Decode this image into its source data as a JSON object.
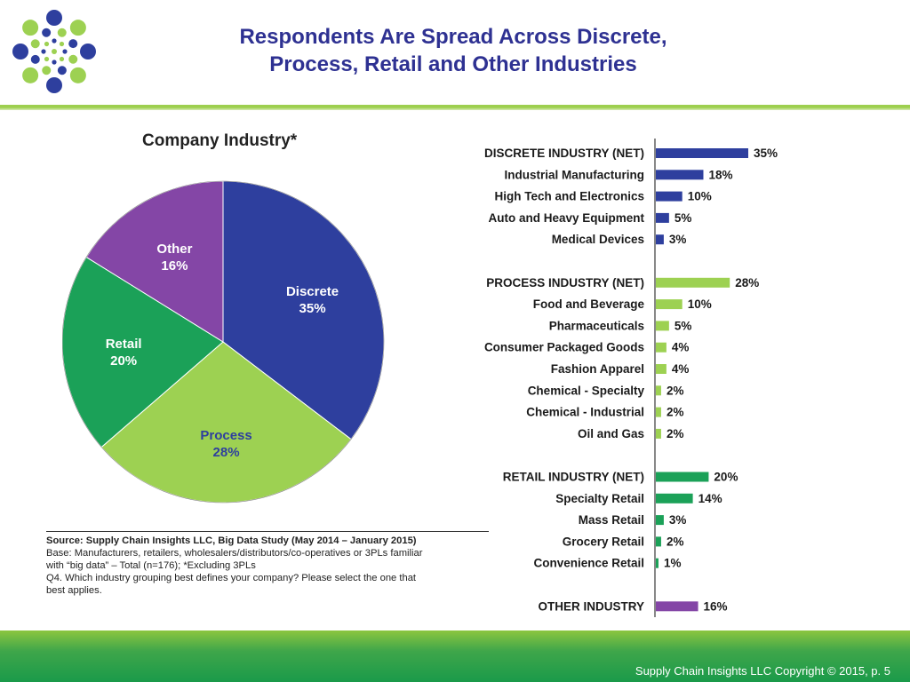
{
  "slide": {
    "title_line1": "Respondents Are Spread Across Discrete,",
    "title_line2": "Process, Retail and Other Industries",
    "copyright": "Supply Chain Insights LLC Copyright © 2015, p. 5"
  },
  "logo_icon": "supply-chain-insights-dot-logo",
  "colors": {
    "title": "#2e3192",
    "discrete": "#2e3f9e",
    "process": "#9dd152",
    "retail": "#1ba158",
    "other": "#8446a6",
    "footer_green": "#3fa64a"
  },
  "source": {
    "heading": "Source:  Supply Chain Insights LLC, Big Data Study  (May 2014 – January 2015)",
    "base": "Base:  Manufacturers, retailers, wholesalers/distributors/co-operatives or 3PLs familiar",
    "base2": "with “big data” – Total (n=176); *Excluding 3PLs",
    "question": "Q4. Which industry grouping best defines your company?  Please select the one that",
    "question2": "best applies."
  },
  "chart_data": [
    {
      "type": "pie",
      "title": "Company Industry*",
      "slices": [
        {
          "name": "Discrete",
          "value": 35,
          "label": "35%"
        },
        {
          "name": "Process",
          "value": 28,
          "label": "28%"
        },
        {
          "name": "Retail",
          "value": 20,
          "label": "20%"
        },
        {
          "name": "Other",
          "value": 16,
          "label": "16%"
        }
      ]
    },
    {
      "type": "bar",
      "orientation": "horizontal",
      "xlim": [
        0,
        35
      ],
      "groups": [
        {
          "color_key": "discrete",
          "items": [
            {
              "label": "DISCRETE INDUSTRY (NET)",
              "value": 35,
              "text": "35%"
            },
            {
              "label": "Industrial Manufacturing",
              "value": 18,
              "text": "18%"
            },
            {
              "label": "High Tech and Electronics",
              "value": 10,
              "text": "10%"
            },
            {
              "label": "Auto and Heavy Equipment",
              "value": 5,
              "text": "5%"
            },
            {
              "label": "Medical Devices",
              "value": 3,
              "text": "3%"
            }
          ]
        },
        {
          "color_key": "process",
          "items": [
            {
              "label": "PROCESS INDUSTRY (NET)",
              "value": 28,
              "text": "28%"
            },
            {
              "label": "Food and Beverage",
              "value": 10,
              "text": "10%"
            },
            {
              "label": "Pharmaceuticals",
              "value": 5,
              "text": "5%"
            },
            {
              "label": "Consumer Packaged Goods",
              "value": 4,
              "text": "4%"
            },
            {
              "label": "Fashion Apparel",
              "value": 4,
              "text": "4%"
            },
            {
              "label": "Chemical - Specialty",
              "value": 2,
              "text": "2%"
            },
            {
              "label": "Chemical - Industrial",
              "value": 2,
              "text": "2%"
            },
            {
              "label": "Oil and Gas",
              "value": 2,
              "text": "2%"
            }
          ]
        },
        {
          "color_key": "retail",
          "items": [
            {
              "label": "RETAIL INDUSTRY (NET)",
              "value": 20,
              "text": "20%"
            },
            {
              "label": "Specialty Retail",
              "value": 14,
              "text": "14%"
            },
            {
              "label": "Mass Retail",
              "value": 3,
              "text": "3%"
            },
            {
              "label": "Grocery Retail",
              "value": 2,
              "text": "2%"
            },
            {
              "label": "Convenience Retail",
              "value": 1,
              "text": "1%"
            }
          ]
        },
        {
          "color_key": "other",
          "items": [
            {
              "label": "OTHER INDUSTRY",
              "value": 16,
              "text": "16%"
            }
          ]
        }
      ]
    }
  ]
}
